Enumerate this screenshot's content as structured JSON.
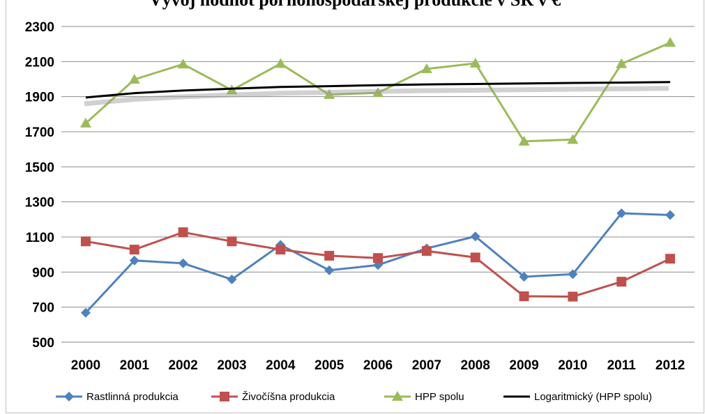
{
  "chart_data": {
    "type": "line",
    "title": "Vývoj hodnôt poľnohospodárskej produkcie v SR v €",
    "xlabel": "",
    "ylabel": "",
    "ylim": [
      500,
      2300
    ],
    "yticks": [
      500,
      700,
      900,
      1100,
      1300,
      1500,
      1700,
      1900,
      2100,
      2300
    ],
    "categories": [
      "2000",
      "2001",
      "2002",
      "2003",
      "2004",
      "2005",
      "2006",
      "2007",
      "2008",
      "2009",
      "2010",
      "2011",
      "2012"
    ],
    "grid": true,
    "legend_position": "bottom",
    "series": [
      {
        "name": "Rastlinná produkcia",
        "color": "#4f81bd",
        "marker": "diamond",
        "values": [
          668,
          966,
          950,
          858,
          1055,
          910,
          940,
          1035,
          1103,
          873,
          888,
          1235,
          1225
        ]
      },
      {
        "name": "Živočíšna produkcia",
        "color": "#c0504d",
        "marker": "square",
        "values": [
          1075,
          1028,
          1127,
          1075,
          1028,
          993,
          980,
          1020,
          983,
          762,
          760,
          845,
          976
        ]
      },
      {
        "name": "HPP spolu",
        "color": "#9bbb59",
        "marker": "triangle",
        "values": [
          1748,
          1998,
          2085,
          1937,
          2088,
          1911,
          1922,
          2058,
          2090,
          1645,
          1655,
          2087,
          2208
        ]
      },
      {
        "name": "Logaritmický  (HPP spolu)",
        "color": "#000000",
        "marker": "none",
        "trendline": true,
        "values": [
          1895,
          1920,
          1935,
          1945,
          1955,
          1960,
          1965,
          1970,
          1972,
          1975,
          1978,
          1980,
          1983
        ]
      }
    ]
  }
}
